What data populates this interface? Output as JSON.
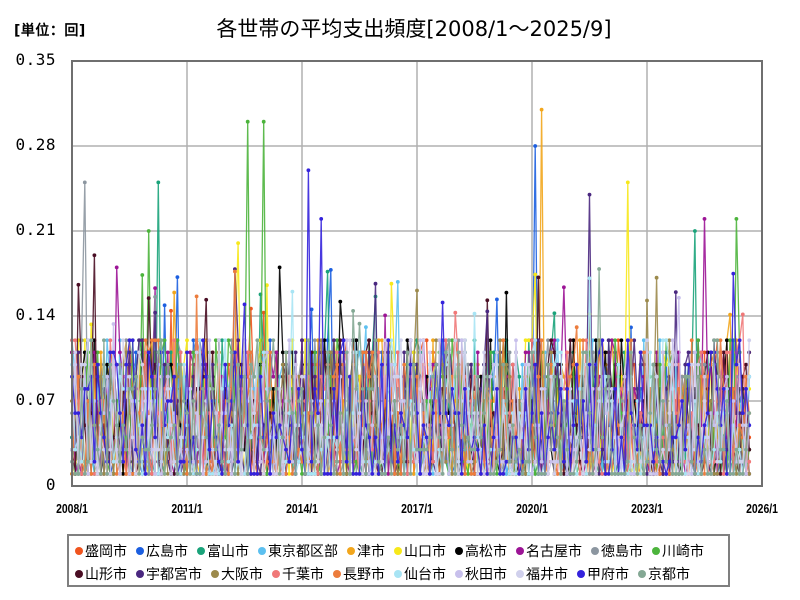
{
  "header": {
    "unit_label": "[単位：回]",
    "title": "各世帯の平均支出頻度[2008/1～2025/9]"
  },
  "chart_data": {
    "type": "line",
    "title": "各世帯の平均支出頻度[2008/1～2025/9]",
    "unit": "回",
    "xlabel": "",
    "ylabel": "",
    "x_range": [
      "2008/1",
      "2025/9"
    ],
    "x_axis_range": [
      "2008/1",
      "2026/1"
    ],
    "ylim": [
      0,
      0.35
    ],
    "y_ticks": [
      "0",
      "0.07",
      "0.14",
      "0.21",
      "0.28",
      "0.35"
    ],
    "x_ticks": [
      "2008/1",
      "2011/1",
      "2014/1",
      "2017/1",
      "2020/1",
      "2023/1",
      "2026/1"
    ],
    "grid": true,
    "legend_position": "bottom",
    "markers": true,
    "series": [
      {
        "name": "盛岡市",
        "color": "#f0541e"
      },
      {
        "name": "広島市",
        "color": "#1c5fe0"
      },
      {
        "name": "富山市",
        "color": "#1aa37a"
      },
      {
        "name": "東京都区部",
        "color": "#5cc0f0"
      },
      {
        "name": "津市",
        "color": "#f2a61c"
      },
      {
        "name": "山口市",
        "color": "#f7e81a"
      },
      {
        "name": "高松市",
        "color": "#000000"
      },
      {
        "name": "名古屋市",
        "color": "#9c1496"
      },
      {
        "name": "徳島市",
        "color": "#8c96a0"
      },
      {
        "name": "川崎市",
        "color": "#4cb43c"
      },
      {
        "name": "山形市",
        "color": "#4a0e24"
      },
      {
        "name": "宇都宮市",
        "color": "#4a2880"
      },
      {
        "name": "大阪市",
        "color": "#9c8a4c"
      },
      {
        "name": "千葉市",
        "color": "#f07878"
      },
      {
        "name": "長野市",
        "color": "#ec7c3c"
      },
      {
        "name": "仙台市",
        "color": "#a8e4f4"
      },
      {
        "name": "秋田市",
        "color": "#c8c0ec"
      },
      {
        "name": "福井市",
        "color": "#d0d0ec"
      },
      {
        "name": "甲府市",
        "color": "#3422dc"
      },
      {
        "name": "京都市",
        "color": "#84a894"
      }
    ],
    "typical_range": [
      0.01,
      0.12
    ],
    "notable_peaks": [
      {
        "series": "徳島市",
        "date": "2008/5",
        "value": 0.25
      },
      {
        "series": "山形市",
        "date": "2008/8",
        "value": 0.19
      },
      {
        "series": "名古屋市",
        "date": "2009/3",
        "value": 0.18
      },
      {
        "series": "富山市",
        "date": "2010/4",
        "value": 0.25
      },
      {
        "series": "川崎市",
        "date": "2010/1",
        "value": 0.21
      },
      {
        "series": "川崎市",
        "date": "2012/8",
        "value": 0.3
      },
      {
        "series": "川崎市",
        "date": "2013/1",
        "value": 0.3
      },
      {
        "series": "山口市",
        "date": "2012/5",
        "value": 0.2
      },
      {
        "series": "高松市",
        "date": "2013/6",
        "value": 0.18
      },
      {
        "series": "甲府市",
        "date": "2014/3",
        "value": 0.26
      },
      {
        "series": "甲府市",
        "date": "2014/7",
        "value": 0.22
      },
      {
        "series": "広島市",
        "date": "2020/2",
        "value": 0.28
      },
      {
        "series": "津市",
        "date": "2020/4",
        "value": 0.31
      },
      {
        "series": "宇都宮市",
        "date": "2021/7",
        "value": 0.24
      },
      {
        "series": "山口市",
        "date": "2022/7",
        "value": 0.25
      },
      {
        "series": "富山市",
        "date": "2024/4",
        "value": 0.21
      },
      {
        "series": "名古屋市",
        "date": "2024/7",
        "value": 0.22
      },
      {
        "series": "川崎市",
        "date": "2025/5",
        "value": 0.22
      }
    ]
  },
  "legend": {
    "row1": [
      "盛岡市",
      "広島市",
      "富山市",
      "東京都区部",
      "津市",
      "山口市",
      "高松市",
      "名古屋市",
      "徳島市",
      "川崎市"
    ],
    "row2": [
      "山形市",
      "宇都宮市",
      "大阪市",
      "千葉市",
      "長野市",
      "仙台市",
      "秋田市",
      "福井市",
      "甲府市",
      "京都市"
    ]
  }
}
